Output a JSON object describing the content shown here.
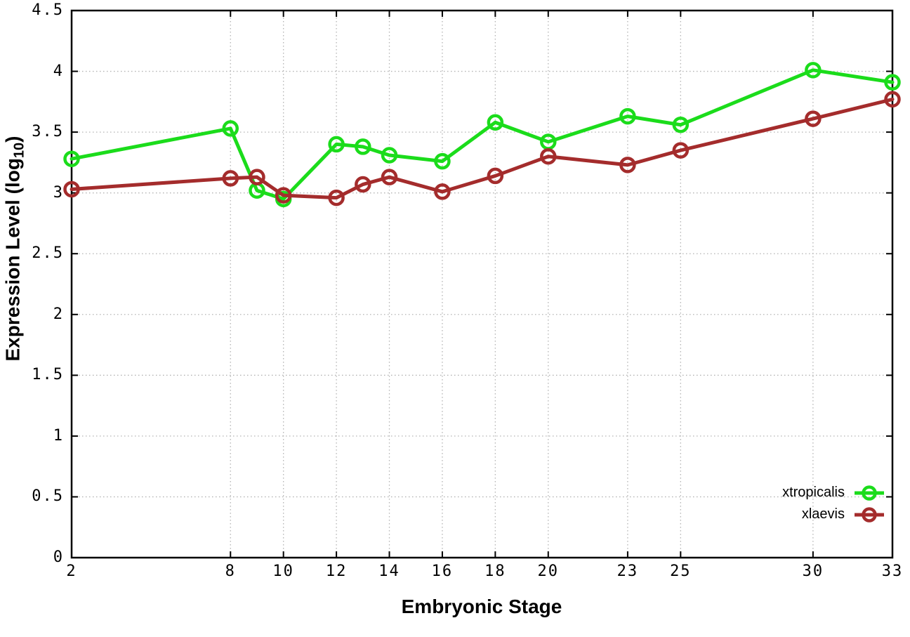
{
  "chart_data": {
    "type": "line",
    "title": "",
    "xlabel": "Embryonic Stage",
    "ylabel_main": "Expression Level (log",
    "ylabel_subscript": "10",
    "ylabel_suffix": ")",
    "x": [
      2,
      8,
      9,
      10,
      12,
      13,
      14,
      16,
      18,
      20,
      23,
      25,
      30,
      33
    ],
    "x_ticks": [
      2,
      8,
      10,
      12,
      14,
      16,
      18,
      20,
      23,
      25,
      30,
      33
    ],
    "y_ticks": [
      0,
      0.5,
      1,
      1.5,
      2,
      2.5,
      3,
      3.5,
      4,
      4.5
    ],
    "xlim": [
      2,
      33
    ],
    "ylim": [
      0,
      4.5
    ],
    "grid": true,
    "legend_position": "bottom-right",
    "series": [
      {
        "name": "xtropicalis",
        "color": "#1bdc1b",
        "values": [
          3.28,
          3.53,
          3.02,
          2.95,
          3.4,
          3.38,
          3.31,
          3.26,
          3.58,
          3.42,
          3.63,
          3.56,
          4.01,
          3.91
        ]
      },
      {
        "name": "xlaevis",
        "color": "#a42c2c",
        "values": [
          3.03,
          3.12,
          3.13,
          2.98,
          2.96,
          3.07,
          3.13,
          3.01,
          3.14,
          3.3,
          3.23,
          3.35,
          3.61,
          3.77
        ]
      }
    ],
    "colors": {
      "axis": "#000000",
      "grid": "#b3b3b3",
      "background": "#ffffff"
    }
  }
}
